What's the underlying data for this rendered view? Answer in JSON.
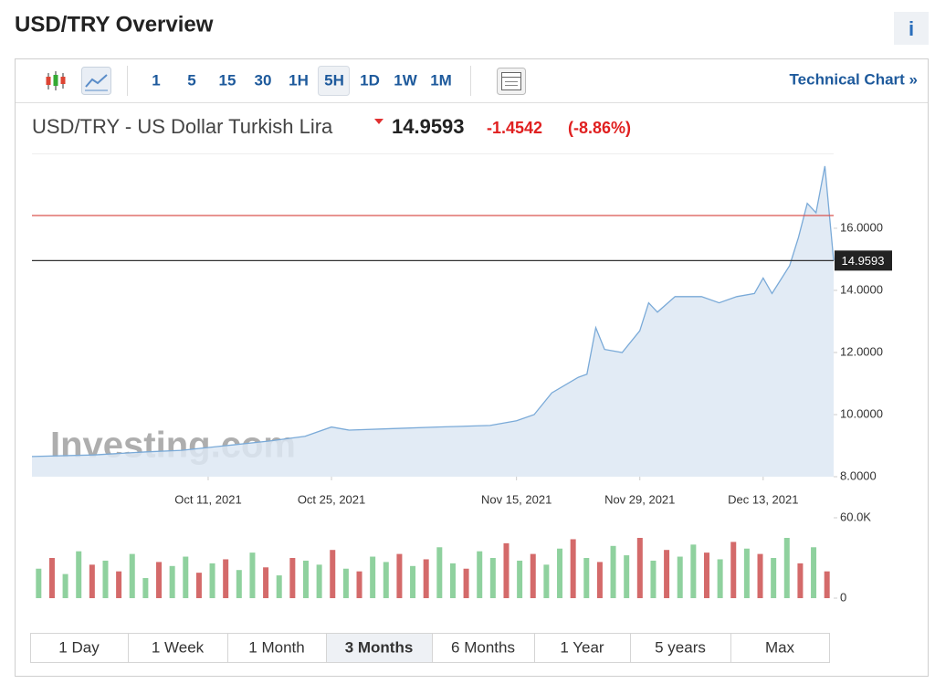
{
  "header": {
    "title": "USD/TRY Overview",
    "info": "i"
  },
  "toolbar": {
    "intervals": [
      "1",
      "5",
      "15",
      "30",
      "1H",
      "5H",
      "1D",
      "1W",
      "1M"
    ],
    "selected": 5,
    "link": "Technical Chart »"
  },
  "quote": {
    "name": "USD/TRY - US Dollar Turkish Lira",
    "price": "14.9593",
    "change": "-1.4542",
    "change_percent": "(-8.86%)"
  },
  "chart_data": {
    "type": "area",
    "x": [
      "2021-09-21",
      "2021-09-28",
      "2021-10-04",
      "2021-10-08",
      "2021-10-13",
      "2021-10-18",
      "2021-10-22",
      "2021-10-25",
      "2021-10-27",
      "2021-11-01",
      "2021-11-06",
      "2021-11-12",
      "2021-11-15",
      "2021-11-17",
      "2021-11-19",
      "2021-11-22",
      "2021-11-23",
      "2021-11-24",
      "2021-11-25",
      "2021-11-27",
      "2021-11-29",
      "2021-11-30",
      "2021-12-01",
      "2021-12-03",
      "2021-12-06",
      "2021-12-08",
      "2021-12-10",
      "2021-12-12",
      "2021-12-13",
      "2021-12-14",
      "2021-12-16",
      "2021-12-17",
      "2021-12-18",
      "2021-12-19",
      "2021-12-20",
      "2021-12-21"
    ],
    "values": [
      8.65,
      8.7,
      8.8,
      8.85,
      9.0,
      9.15,
      9.3,
      9.6,
      9.5,
      9.55,
      9.6,
      9.65,
      9.8,
      10.0,
      10.7,
      11.2,
      11.3,
      12.8,
      12.1,
      12.0,
      12.7,
      13.6,
      13.3,
      13.8,
      13.8,
      13.6,
      13.8,
      13.9,
      14.4,
      13.9,
      14.8,
      15.7,
      16.8,
      16.5,
      18.0,
      14.9593
    ],
    "color": "#7aaad8",
    "fill": "#dde8f3",
    "xlim": [
      "2021-09-21",
      "2021-12-21"
    ],
    "xticks": [
      {
        "value": "2021-10-11",
        "label": "Oct 11, 2021"
      },
      {
        "value": "2021-10-25",
        "label": "Oct 25, 2021"
      },
      {
        "value": "2021-11-15",
        "label": "Nov 15, 2021"
      },
      {
        "value": "2021-11-29",
        "label": "Nov 29, 2021"
      },
      {
        "value": "2021-12-13",
        "label": "Dec 13, 2021"
      }
    ],
    "ylim": [
      8,
      18.41
    ],
    "yticks": [
      {
        "value": 8,
        "label": "8.0000"
      },
      {
        "value": 10,
        "label": "10.0000"
      },
      {
        "value": 12,
        "label": "12.0000"
      },
      {
        "value": 14,
        "label": "14.0000"
      },
      {
        "value": 16,
        "label": "16.0000"
      }
    ],
    "current_price": 14.9593,
    "reference_line": {
      "value": 16.41,
      "color": "#d9534f"
    },
    "watermark": "Investing.com",
    "volume": {
      "values": [
        22000,
        30000,
        18000,
        35000,
        25000,
        28000,
        20000,
        33000,
        15000,
        27000,
        24000,
        31000,
        19000,
        26000,
        29000,
        21000,
        34000,
        23000,
        17000,
        30000,
        28000,
        25000,
        36000,
        22000,
        20000,
        31000,
        27000,
        33000,
        24000,
        29000,
        38000,
        26000,
        22000,
        35000,
        30000,
        41000,
        28000,
        33000,
        25000,
        37000,
        44000,
        30000,
        27000,
        39000,
        32000,
        45000,
        28000,
        36000,
        31000,
        40000,
        34000,
        29000,
        42000,
        37000,
        33000,
        30000,
        45000,
        26000,
        38000,
        20000
      ],
      "colors": [
        "#8fd19e",
        "#d46a6a",
        "#8fd19e",
        "#8fd19e",
        "#d46a6a",
        "#8fd19e",
        "#d46a6a",
        "#8fd19e",
        "#8fd19e",
        "#d46a6a",
        "#8fd19e",
        "#8fd19e",
        "#d46a6a",
        "#8fd19e",
        "#d46a6a",
        "#8fd19e",
        "#8fd19e",
        "#d46a6a",
        "#8fd19e",
        "#d46a6a",
        "#8fd19e",
        "#8fd19e",
        "#d46a6a",
        "#8fd19e",
        "#d46a6a",
        "#8fd19e",
        "#8fd19e",
        "#d46a6a",
        "#8fd19e",
        "#d46a6a",
        "#8fd19e",
        "#8fd19e",
        "#d46a6a",
        "#8fd19e",
        "#8fd19e",
        "#d46a6a",
        "#8fd19e",
        "#d46a6a",
        "#8fd19e",
        "#8fd19e",
        "#d46a6a",
        "#8fd19e",
        "#d46a6a",
        "#8fd19e",
        "#8fd19e",
        "#d46a6a",
        "#8fd19e",
        "#d46a6a",
        "#8fd19e",
        "#8fd19e",
        "#d46a6a",
        "#8fd19e",
        "#d46a6a",
        "#8fd19e",
        "#d46a6a",
        "#8fd19e",
        "#8fd19e",
        "#d46a6a",
        "#8fd19e",
        "#d46a6a"
      ],
      "ylim": [
        0,
        60000
      ],
      "yticks": [
        {
          "value": 60000,
          "label": "60.0K"
        },
        0
      ]
    }
  },
  "ranges": {
    "buttons": [
      "1 Day",
      "1 Week",
      "1 Month",
      "3 Months",
      "6 Months",
      "1 Year",
      "5 years",
      "Max"
    ],
    "selected": 3
  }
}
